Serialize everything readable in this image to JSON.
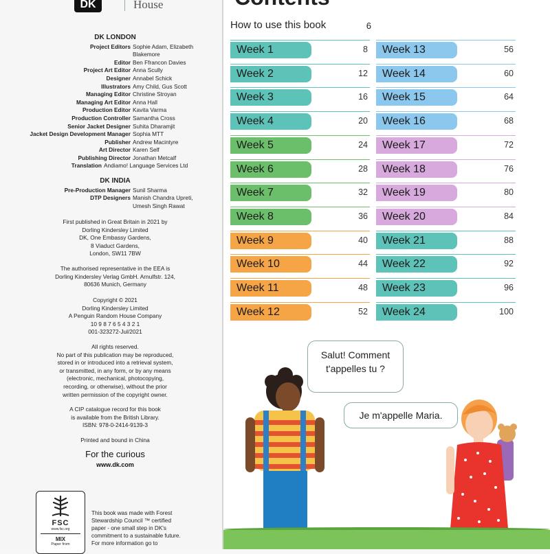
{
  "logo": {
    "mark": "DK",
    "house": "House"
  },
  "imprint": {
    "london_head": "DK LONDON",
    "london_credits": [
      {
        "role": "Project Editors",
        "names": "Sophie Adam, Elizabeth Blakemore"
      },
      {
        "role": "Editor",
        "names": "Ben Ffrancon Davies"
      },
      {
        "role": "Project Art Editor",
        "names": "Anna Scully"
      },
      {
        "role": "Designer",
        "names": "Annabel Schick"
      },
      {
        "role": "Illustrators",
        "names": "Amy Child, Gus Scott"
      },
      {
        "role": "Managing Editor",
        "names": "Christine Stroyan"
      },
      {
        "role": "Managing Art Editor",
        "names": "Anna Hall"
      },
      {
        "role": "Production Editor",
        "names": "Kavita Varma"
      },
      {
        "role": "Production Controller",
        "names": "Samantha Cross"
      },
      {
        "role": "Senior Jacket Designer",
        "names": "Suhita Dharamjit"
      },
      {
        "role": "Jacket Design Development Manager",
        "names": "Sophia MTT"
      },
      {
        "role": "Publisher",
        "names": "Andrew Macintyre"
      },
      {
        "role": "Art Director",
        "names": "Karen Self"
      },
      {
        "role": "Publishing Director",
        "names": "Jonathan Metcalf"
      }
    ],
    "translation": {
      "role": "Translation",
      "names": "Andiamo! Language Services Ltd"
    },
    "india_head": "DK INDIA",
    "india_credits": [
      {
        "role": "Pre-Production Manager",
        "names": "Sunil Sharma"
      },
      {
        "role": "DTP Designers",
        "names": "Manish Chandra Upreti, Umesh Singh Rawat"
      }
    ],
    "first_published": [
      "First published in Great Britain in 2021 by",
      "Dorling Kindersley Limited",
      "DK, One Embassy Gardens,",
      "8 Viaduct Gardens,",
      "London, SW11 7BW"
    ],
    "eea": [
      "The authorised representative in the EEA is",
      "Dorling Kindersley Verlag GmbH. Arnulfstr. 124,",
      "80636 Munich, Germany"
    ],
    "copyright": [
      "Copyright © 2021",
      "Dorling Kindersley Limited",
      "A Penguin Random House Company",
      "10 9 8 7 6 5 4 3 2 1",
      "001-323272-Jul/2021"
    ],
    "rights": [
      "All rights reserved.",
      "No part of this publication may be reproduced,",
      "stored in or introduced into a retrieval system,",
      "or transmitted, in any form, or by any means",
      "(electronic, mechanical, photocopying,",
      "recording, or otherwise), without the prior",
      "written permission of the copyright owner."
    ],
    "cip": [
      "A CIP catalogue record for this book",
      "is available from the British Library.",
      "ISBN: 978-0-2414-9139-3"
    ],
    "printed": "Printed and bound in China",
    "curious": "For the curious",
    "url": "www.dk.com",
    "fsc_label": "FSC",
    "fsc_small": "www.fsc.org",
    "fsc_mix": "MIX",
    "fsc_paper": "Paper from",
    "fsc_text": [
      "This book was made with Forest",
      "Stewardship Council ™ certified",
      "paper - one small step in DK's",
      "commitment to a sustainable future.",
      "For more information go to"
    ]
  },
  "contents": {
    "title": "Contents",
    "howto_label": "How to use this book",
    "howto_page": "6",
    "weeks_left": [
      {
        "label": "Week 1",
        "page": "8",
        "color": "#5dc3b9"
      },
      {
        "label": "Week 2",
        "page": "12",
        "color": "#5dc3b9"
      },
      {
        "label": "Week 3",
        "page": "16",
        "color": "#5dc3b9"
      },
      {
        "label": "Week 4",
        "page": "20",
        "color": "#5dc3b9"
      },
      {
        "label": "Week 5",
        "page": "24",
        "color": "#6cbf6a"
      },
      {
        "label": "Week 6",
        "page": "28",
        "color": "#6cbf6a"
      },
      {
        "label": "Week 7",
        "page": "32",
        "color": "#6cbf6a"
      },
      {
        "label": "Week 8",
        "page": "36",
        "color": "#6cbf6a"
      },
      {
        "label": "Week 9",
        "page": "40",
        "color": "#f5a545"
      },
      {
        "label": "Week 10",
        "page": "44",
        "color": "#f5a545"
      },
      {
        "label": "Week 11",
        "page": "48",
        "color": "#f5a545"
      },
      {
        "label": "Week 12",
        "page": "52",
        "color": "#f5a545"
      }
    ],
    "weeks_right": [
      {
        "label": "Week 13",
        "page": "56",
        "color": "#8cc8ee"
      },
      {
        "label": "Week 14",
        "page": "60",
        "color": "#8cc8ee"
      },
      {
        "label": "Week 15",
        "page": "64",
        "color": "#8cc8ee"
      },
      {
        "label": "Week 16",
        "page": "68",
        "color": "#8cc8ee"
      },
      {
        "label": "Week 17",
        "page": "72",
        "color": "#d7a9dc"
      },
      {
        "label": "Week 18",
        "page": "76",
        "color": "#d7a9dc"
      },
      {
        "label": "Week 19",
        "page": "80",
        "color": "#d7a9dc"
      },
      {
        "label": "Week 20",
        "page": "84",
        "color": "#d7a9dc"
      },
      {
        "label": "Week 21",
        "page": "88",
        "color": "#5dc3b9"
      },
      {
        "label": "Week 22",
        "page": "92",
        "color": "#5dc3b9"
      },
      {
        "label": "Week 23",
        "page": "96",
        "color": "#5dc3b9"
      },
      {
        "label": "Week 24",
        "page": "100",
        "color": "#5dc3b9"
      }
    ]
  },
  "dialogue": {
    "boy_line1": "Salut! Comment",
    "boy_line2": "t'appelles tu ?",
    "girl_line": "Je m'appelle Maria."
  }
}
